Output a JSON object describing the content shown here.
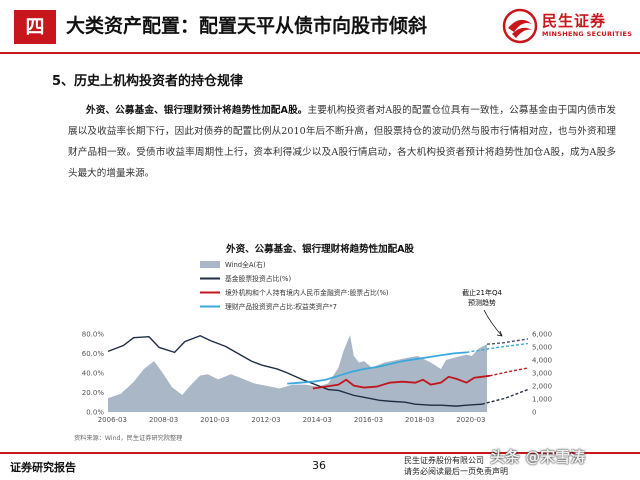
{
  "header": {
    "section_number": "四",
    "title": "大类资产配置：配置天平从债市向股市倾斜",
    "logo_cn": "民生证券",
    "logo_en": "MINSHENG SECURITIES"
  },
  "subheading": "5、历史上机构投资者的持仓规律",
  "paragraph": {
    "lead": "外资、公募基金、银行理财预计将趋势性加配A股。",
    "body": "主要机构投资者对A股的配置仓位具有一致性，公募基金由于国内债市发展以及收益率长期下行，因此对债券的配置比例从2010年后不断升高，但股票持仓的波动仍然与股市行情相对应，也与外资和理财产品相一致。受债市收益率周期性上行，资本利得减少以及A股行情启动，各大机构投资者预计将趋势性加仓A股，成为A股多头最大的增量来源。"
  },
  "chart_data": {
    "type": "line",
    "title": "外资、公募基金、银行理财将趋势性加配A股",
    "x_ticks": [
      "2006-03",
      "2008-03",
      "2010-03",
      "2012-03",
      "2014-03",
      "2016-03",
      "2018-03",
      "2020-03"
    ],
    "y_left_ticks": [
      "0.0%",
      "20.0%",
      "40.0%",
      "60.0%",
      "80.0%"
    ],
    "y_left_range": [
      0,
      90
    ],
    "y_right_ticks": [
      "0",
      "1,000",
      "2,000",
      "3,000",
      "4,000",
      "5,000",
      "6,000"
    ],
    "y_right_range": [
      0,
      6750
    ],
    "x_range": [
      2006.0,
      2022.4
    ],
    "legend": [
      {
        "label": "Wind全A(右)",
        "style": "area",
        "color": "#a9b7c6"
      },
      {
        "label": "基金股票投资占比(%)",
        "style": "line",
        "color": "#1f2e44"
      },
      {
        "label": "境外机构和个人持有境内人民币金融资产:股票占比(%)",
        "style": "line",
        "color": "#c0171d"
      },
      {
        "label": "理财产品投资资产占比:权益类资产*7",
        "style": "line",
        "color": "#3aa8dc"
      }
    ],
    "annotation": "截止21年Q4\n预测趋势",
    "series": [
      {
        "name": "Wind全A(右)",
        "axis": "right",
        "x": [
          2006.0,
          2006.5,
          2007.0,
          2007.4,
          2007.8,
          2008.1,
          2008.5,
          2008.9,
          2009.2,
          2009.6,
          2009.9,
          2010.3,
          2010.8,
          2011.2,
          2011.7,
          2012.2,
          2012.7,
          2013.2,
          2013.7,
          2014.2,
          2014.6,
          2015.0,
          2015.2,
          2015.45,
          2015.6,
          2015.8,
          2016.0,
          2016.3,
          2016.8,
          2017.3,
          2017.8,
          2018.1,
          2018.6,
          2019.0,
          2019.2,
          2019.6,
          2020.0,
          2020.2,
          2020.5,
          2020.8
        ],
        "values": [
          1050,
          1400,
          2300,
          3300,
          3900,
          3100,
          1900,
          1300,
          2000,
          2800,
          2900,
          2500,
          2900,
          2600,
          2200,
          2000,
          1800,
          2100,
          2100,
          1950,
          2200,
          3400,
          4700,
          5900,
          4300,
          3800,
          3900,
          3400,
          3800,
          4000,
          4200,
          4300,
          3800,
          3300,
          4000,
          4200,
          4400,
          4300,
          4900,
          5200
        ]
      },
      {
        "name": "基金股票投资占比(%)",
        "axis": "left",
        "x": [
          2006.0,
          2006.6,
          2007.0,
          2007.6,
          2008.0,
          2008.6,
          2009.0,
          2009.6,
          2010.0,
          2010.6,
          2011.0,
          2011.6,
          2012.0,
          2012.6,
          2013.0,
          2013.6,
          2014.0,
          2014.6,
          2015.0,
          2015.6,
          2016.0,
          2016.6,
          2017.0,
          2017.6,
          2018.0,
          2018.6,
          2019.0,
          2019.6,
          2020.0,
          2020.6
        ],
        "values": [
          62,
          68,
          76,
          77,
          66,
          61,
          72,
          78,
          73,
          67,
          61,
          52,
          48,
          44,
          40,
          33,
          29,
          23,
          22,
          17,
          15,
          12,
          11,
          10,
          8,
          7,
          7,
          6,
          7,
          8
        ]
      },
      {
        "name": "境外机构和个人持有境内人民币金融资产:股票占比(%)",
        "axis": "left",
        "x": [
          2014.0,
          2014.5,
          2015.0,
          2015.3,
          2015.6,
          2016.0,
          2016.5,
          2017.0,
          2017.5,
          2018.0,
          2018.3,
          2018.6,
          2019.0,
          2019.3,
          2019.6,
          2020.0,
          2020.3,
          2020.6,
          2020.9
        ],
        "values": [
          24,
          26,
          28,
          33,
          27,
          25,
          26,
          30,
          31,
          30,
          33,
          28,
          30,
          36,
          34,
          30,
          35,
          36,
          37
        ]
      },
      {
        "name": "理财产品投资资产占比:权益类资产*7",
        "axis": "left",
        "x": [
          2013.0,
          2013.5,
          2014.0,
          2014.5,
          2015.0,
          2015.5,
          2016.0,
          2016.5,
          2017.0,
          2017.5,
          2018.0,
          2018.5,
          2019.0,
          2019.5,
          2020.0
        ],
        "values": [
          29,
          30,
          31,
          33,
          37,
          41,
          44,
          46,
          49,
          52,
          54,
          56,
          58,
          60,
          61
        ]
      }
    ],
    "forecast": [
      {
        "name": "Wind全A(右)",
        "axis": "right",
        "x": [
          2020.8,
          2021.4,
          2022.4
        ],
        "values": [
          5200,
          5300,
          5600
        ]
      },
      {
        "name": "基金股票投资占比(%)",
        "axis": "left",
        "x": [
          2020.6,
          2021.5,
          2022.4
        ],
        "values": [
          8,
          14,
          23
        ]
      },
      {
        "name": "境外机构和个人持有境内人民币金融资产:股票占比(%)",
        "axis": "left",
        "x": [
          2020.9,
          2021.6,
          2022.4
        ],
        "values": [
          37,
          41,
          45
        ]
      },
      {
        "name": "理财产品投资资产占比:权益类资产*7",
        "axis": "left",
        "x": [
          2020.0,
          2021.2,
          2022.4
        ],
        "values": [
          61,
          66,
          70
        ]
      }
    ],
    "source": "资料来源：Wind，民生证券研究院整理"
  },
  "footer": {
    "left": "证券研究报告",
    "page": "36",
    "right_line1": "民生证券股份有限公司",
    "right_line2": "请务必阅读最后一页免责声明",
    "watermark": "头条 @宋雪涛"
  }
}
